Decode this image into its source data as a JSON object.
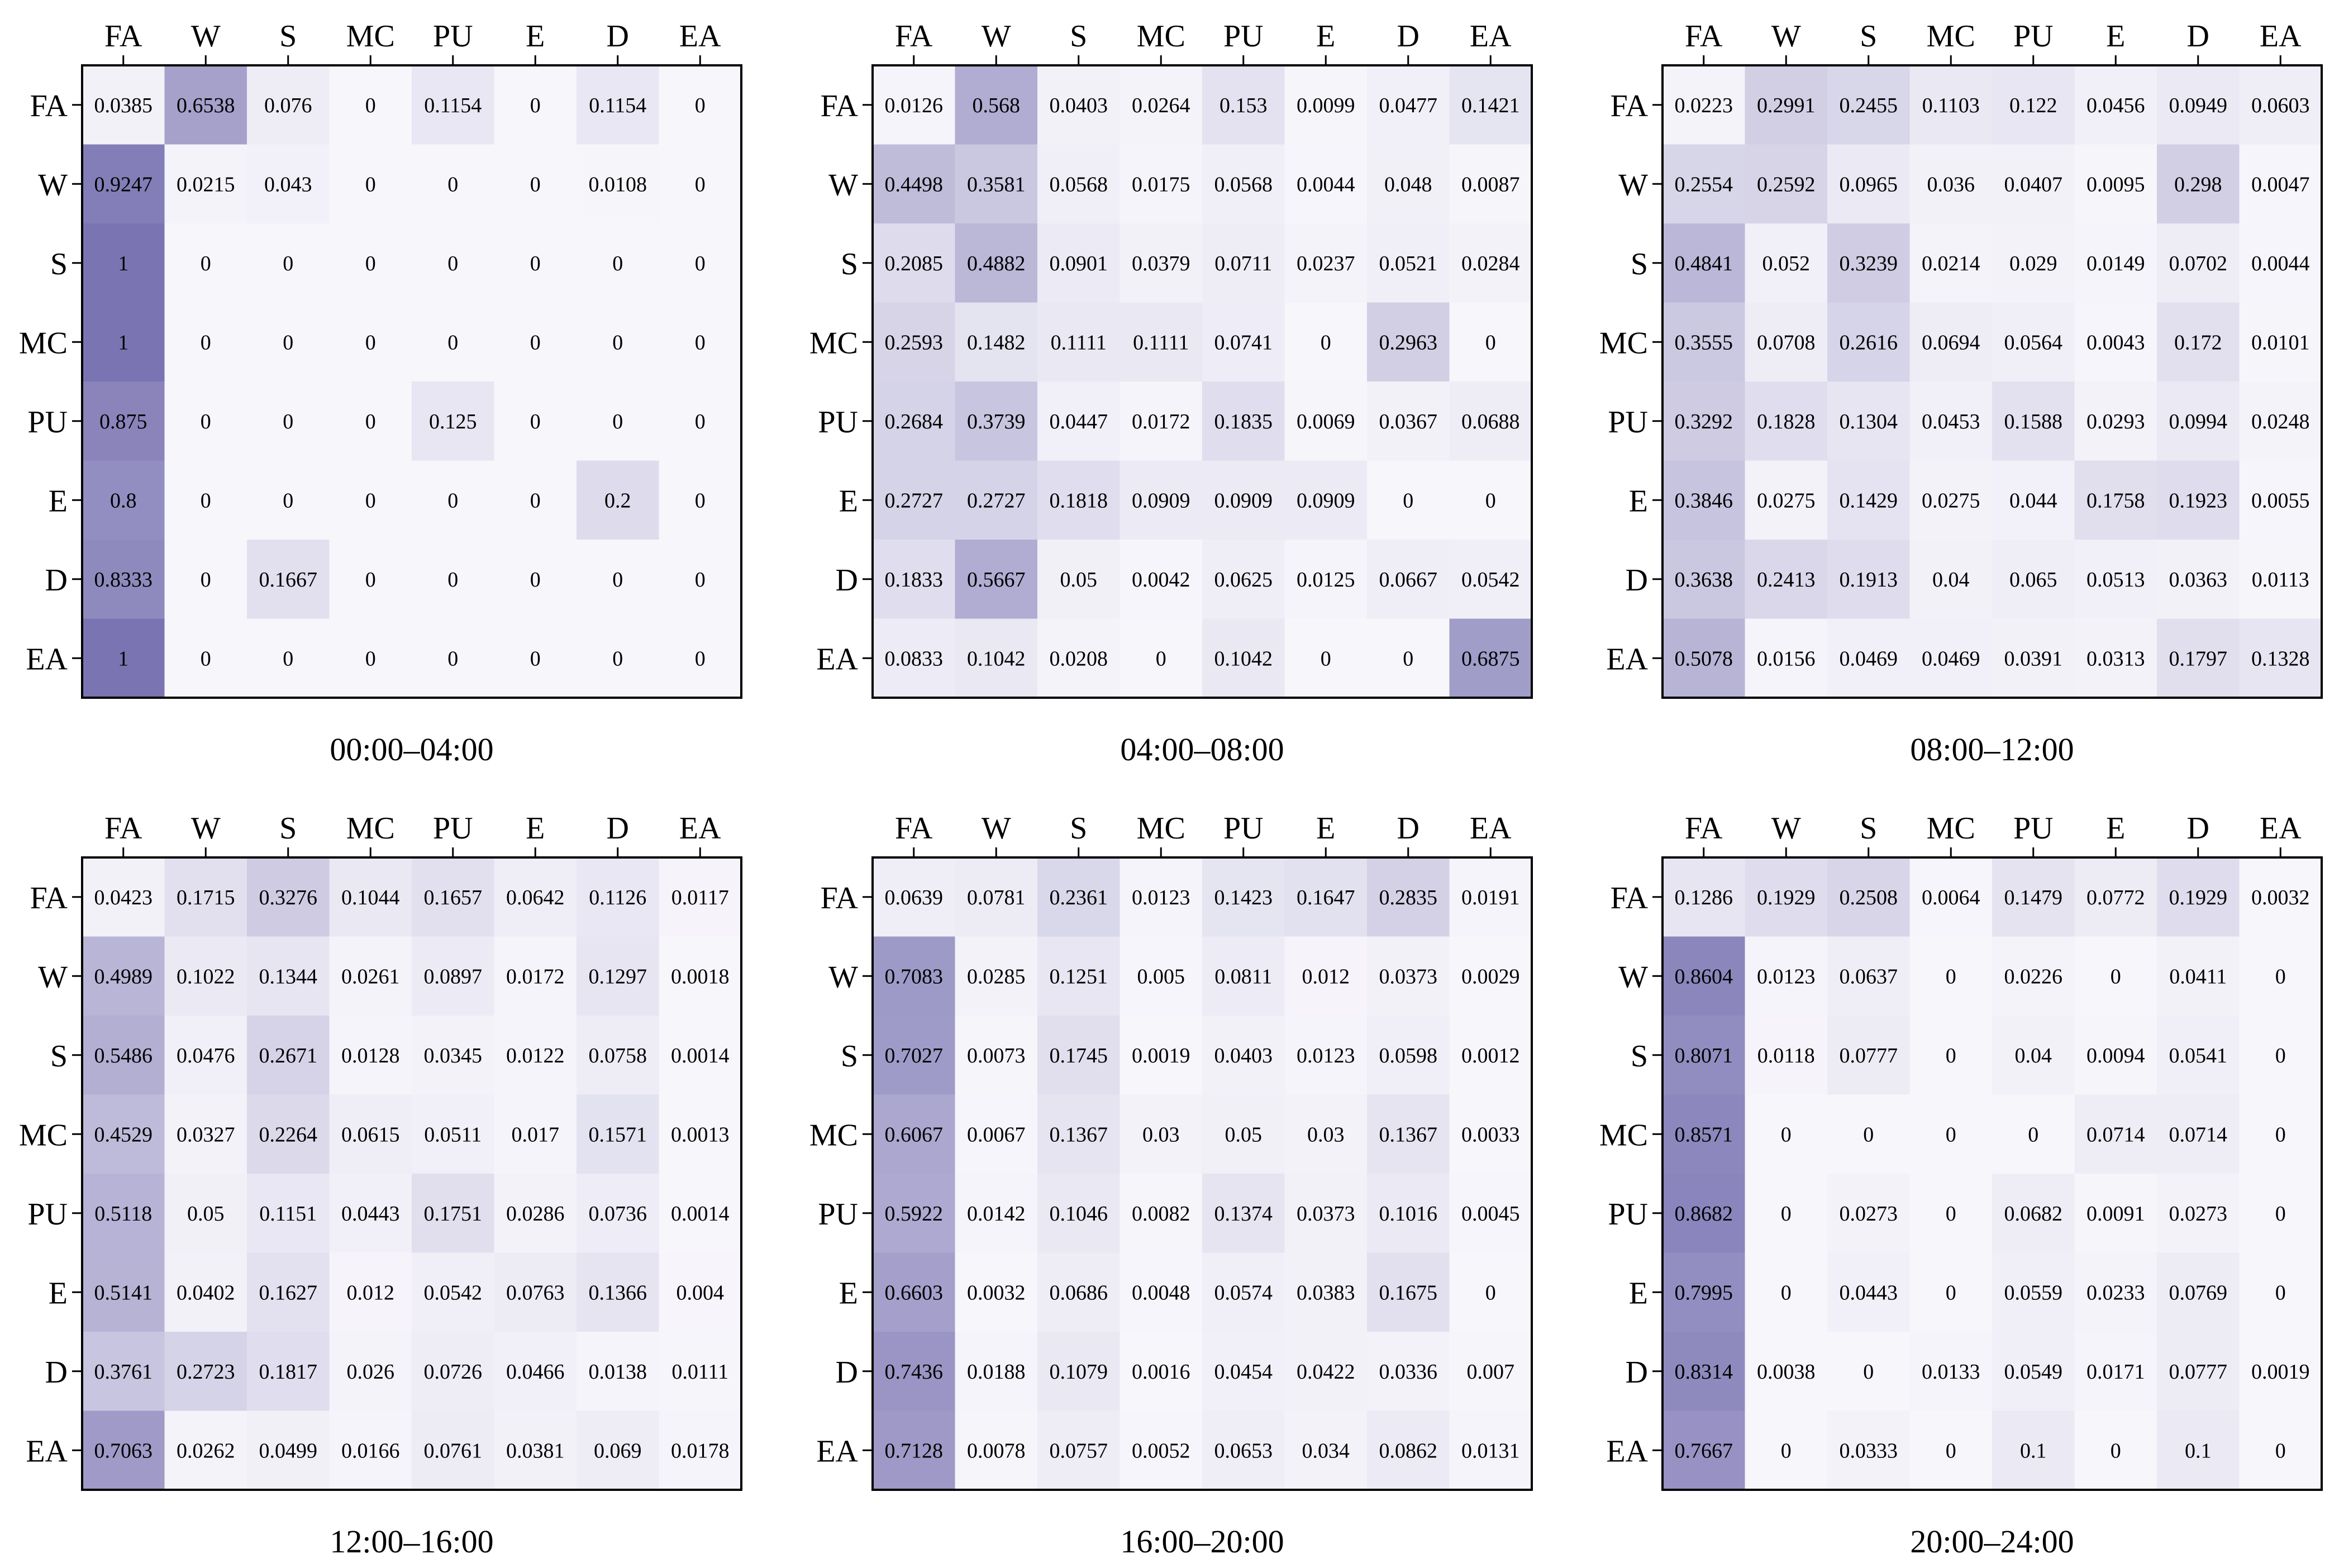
{
  "chart_data": [
    {
      "type": "heatmap",
      "title": "00:00–04:00",
      "x_labels": [
        "FA",
        "W",
        "S",
        "MC",
        "PU",
        "E",
        "D",
        "EA"
      ],
      "y_labels": [
        "FA",
        "W",
        "S",
        "MC",
        "PU",
        "E",
        "D",
        "EA"
      ],
      "values": [
        [
          "0.0385",
          "0.6538",
          "0.076",
          "0",
          "0.1154",
          "0",
          "0.1154",
          "0"
        ],
        [
          "0.9247",
          "0.0215",
          "0.043",
          "0",
          "0",
          "0",
          "0.0108",
          "0"
        ],
        [
          "1",
          "0",
          "0",
          "0",
          "0",
          "0",
          "0",
          "0"
        ],
        [
          "1",
          "0",
          "0",
          "0",
          "0",
          "0",
          "0",
          "0"
        ],
        [
          "0.875",
          "0",
          "0",
          "0",
          "0.125",
          "0",
          "0",
          "0"
        ],
        [
          "0.8",
          "0",
          "0",
          "0",
          "0",
          "0",
          "0.2",
          "0"
        ],
        [
          "0.8333",
          "0",
          "0.1667",
          "0",
          "0",
          "0",
          "0",
          "0"
        ],
        [
          "1",
          "0",
          "0",
          "0",
          "0",
          "0",
          "0",
          "0"
        ]
      ]
    },
    {
      "type": "heatmap",
      "title": "04:00–08:00",
      "x_labels": [
        "FA",
        "W",
        "S",
        "MC",
        "PU",
        "E",
        "D",
        "EA"
      ],
      "y_labels": [
        "FA",
        "W",
        "S",
        "MC",
        "PU",
        "E",
        "D",
        "EA"
      ],
      "values": [
        [
          "0.0126",
          "0.568",
          "0.0403",
          "0.0264",
          "0.153",
          "0.0099",
          "0.0477",
          "0.1421"
        ],
        [
          "0.4498",
          "0.3581",
          "0.0568",
          "0.0175",
          "0.0568",
          "0.0044",
          "0.048",
          "0.0087"
        ],
        [
          "0.2085",
          "0.4882",
          "0.0901",
          "0.0379",
          "0.0711",
          "0.0237",
          "0.0521",
          "0.0284"
        ],
        [
          "0.2593",
          "0.1482",
          "0.1111",
          "0.1111",
          "0.0741",
          "0",
          "0.2963",
          "0"
        ],
        [
          "0.2684",
          "0.3739",
          "0.0447",
          "0.0172",
          "0.1835",
          "0.0069",
          "0.0367",
          "0.0688"
        ],
        [
          "0.2727",
          "0.2727",
          "0.1818",
          "0.0909",
          "0.0909",
          "0.0909",
          "0",
          "0"
        ],
        [
          "0.1833",
          "0.5667",
          "0.05",
          "0.0042",
          "0.0625",
          "0.0125",
          "0.0667",
          "0.0542"
        ],
        [
          "0.0833",
          "0.1042",
          "0.0208",
          "0",
          "0.1042",
          "0",
          "0",
          "0.6875"
        ]
      ]
    },
    {
      "type": "heatmap",
      "title": "08:00–12:00",
      "x_labels": [
        "FA",
        "W",
        "S",
        "MC",
        "PU",
        "E",
        "D",
        "EA"
      ],
      "y_labels": [
        "FA",
        "W",
        "S",
        "MC",
        "PU",
        "E",
        "D",
        "EA"
      ],
      "values": [
        [
          "0.0223",
          "0.2991",
          "0.2455",
          "0.1103",
          "0.122",
          "0.0456",
          "0.0949",
          "0.0603"
        ],
        [
          "0.2554",
          "0.2592",
          "0.0965",
          "0.036",
          "0.0407",
          "0.0095",
          "0.298",
          "0.0047"
        ],
        [
          "0.4841",
          "0.052",
          "0.3239",
          "0.0214",
          "0.029",
          "0.0149",
          "0.0702",
          "0.0044"
        ],
        [
          "0.3555",
          "0.0708",
          "0.2616",
          "0.0694",
          "0.0564",
          "0.0043",
          "0.172",
          "0.0101"
        ],
        [
          "0.3292",
          "0.1828",
          "0.1304",
          "0.0453",
          "0.1588",
          "0.0293",
          "0.0994",
          "0.0248"
        ],
        [
          "0.3846",
          "0.0275",
          "0.1429",
          "0.0275",
          "0.044",
          "0.1758",
          "0.1923",
          "0.0055"
        ],
        [
          "0.3638",
          "0.2413",
          "0.1913",
          "0.04",
          "0.065",
          "0.0513",
          "0.0363",
          "0.0113"
        ],
        [
          "0.5078",
          "0.0156",
          "0.0469",
          "0.0469",
          "0.0391",
          "0.0313",
          "0.1797",
          "0.1328"
        ]
      ]
    },
    {
      "type": "heatmap",
      "title": "12:00–16:00",
      "x_labels": [
        "FA",
        "W",
        "S",
        "MC",
        "PU",
        "E",
        "D",
        "EA"
      ],
      "y_labels": [
        "FA",
        "W",
        "S",
        "MC",
        "PU",
        "E",
        "D",
        "EA"
      ],
      "values": [
        [
          "0.0423",
          "0.1715",
          "0.3276",
          "0.1044",
          "0.1657",
          "0.0642",
          "0.1126",
          "0.0117"
        ],
        [
          "0.4989",
          "0.1022",
          "0.1344",
          "0.0261",
          "0.0897",
          "0.0172",
          "0.1297",
          "0.0018"
        ],
        [
          "0.5486",
          "0.0476",
          "0.2671",
          "0.0128",
          "0.0345",
          "0.0122",
          "0.0758",
          "0.0014"
        ],
        [
          "0.4529",
          "0.0327",
          "0.2264",
          "0.0615",
          "0.0511",
          "0.017",
          "0.1571",
          "0.0013"
        ],
        [
          "0.5118",
          "0.05",
          "0.1151",
          "0.0443",
          "0.1751",
          "0.0286",
          "0.0736",
          "0.0014"
        ],
        [
          "0.5141",
          "0.0402",
          "0.1627",
          "0.012",
          "0.0542",
          "0.0763",
          "0.1366",
          "0.004"
        ],
        [
          "0.3761",
          "0.2723",
          "0.1817",
          "0.026",
          "0.0726",
          "0.0466",
          "0.0138",
          "0.0111"
        ],
        [
          "0.7063",
          "0.0262",
          "0.0499",
          "0.0166",
          "0.0761",
          "0.0381",
          "0.069",
          "0.0178"
        ]
      ]
    },
    {
      "type": "heatmap",
      "title": "16:00–20:00",
      "x_labels": [
        "FA",
        "W",
        "S",
        "MC",
        "PU",
        "E",
        "D",
        "EA"
      ],
      "y_labels": [
        "FA",
        "W",
        "S",
        "MC",
        "PU",
        "E",
        "D",
        "EA"
      ],
      "values": [
        [
          "0.0639",
          "0.0781",
          "0.2361",
          "0.0123",
          "0.1423",
          "0.1647",
          "0.2835",
          "0.0191"
        ],
        [
          "0.7083",
          "0.0285",
          "0.1251",
          "0.005",
          "0.0811",
          "0.012",
          "0.0373",
          "0.0029"
        ],
        [
          "0.7027",
          "0.0073",
          "0.1745",
          "0.0019",
          "0.0403",
          "0.0123",
          "0.0598",
          "0.0012"
        ],
        [
          "0.6067",
          "0.0067",
          "0.1367",
          "0.03",
          "0.05",
          "0.03",
          "0.1367",
          "0.0033"
        ],
        [
          "0.5922",
          "0.0142",
          "0.1046",
          "0.0082",
          "0.1374",
          "0.0373",
          "0.1016",
          "0.0045"
        ],
        [
          "0.6603",
          "0.0032",
          "0.0686",
          "0.0048",
          "0.0574",
          "0.0383",
          "0.1675",
          "0"
        ],
        [
          "0.7436",
          "0.0188",
          "0.1079",
          "0.0016",
          "0.0454",
          "0.0422",
          "0.0336",
          "0.007"
        ],
        [
          "0.7128",
          "0.0078",
          "0.0757",
          "0.0052",
          "0.0653",
          "0.034",
          "0.0862",
          "0.0131"
        ]
      ]
    },
    {
      "type": "heatmap",
      "title": "20:00–24:00",
      "x_labels": [
        "FA",
        "W",
        "S",
        "MC",
        "PU",
        "E",
        "D",
        "EA"
      ],
      "y_labels": [
        "FA",
        "W",
        "S",
        "MC",
        "PU",
        "E",
        "D",
        "EA"
      ],
      "values": [
        [
          "0.1286",
          "0.1929",
          "0.2508",
          "0.0064",
          "0.1479",
          "0.0772",
          "0.1929",
          "0.0032"
        ],
        [
          "0.8604",
          "0.0123",
          "0.0637",
          "0",
          "0.0226",
          "0",
          "0.0411",
          "0"
        ],
        [
          "0.8071",
          "0.0118",
          "0.0777",
          "0",
          "0.04",
          "0.0094",
          "0.0541",
          "0"
        ],
        [
          "0.8571",
          "0",
          "0",
          "0",
          "0",
          "0.0714",
          "0.0714",
          "0"
        ],
        [
          "0.8682",
          "0",
          "0.0273",
          "0",
          "0.0682",
          "0.0091",
          "0.0273",
          "0"
        ],
        [
          "0.7995",
          "0",
          "0.0443",
          "0",
          "0.0559",
          "0.0233",
          "0.0769",
          "0"
        ],
        [
          "0.8314",
          "0.0038",
          "0",
          "0.0133",
          "0.0549",
          "0.0171",
          "0.0777",
          "0.0019"
        ],
        [
          "0.7667",
          "0",
          "0.0333",
          "0",
          "0.1",
          "0",
          "0.1",
          "0"
        ]
      ]
    }
  ],
  "colors": {
    "low": "#f7f6fb",
    "high": "#7a74b2"
  }
}
